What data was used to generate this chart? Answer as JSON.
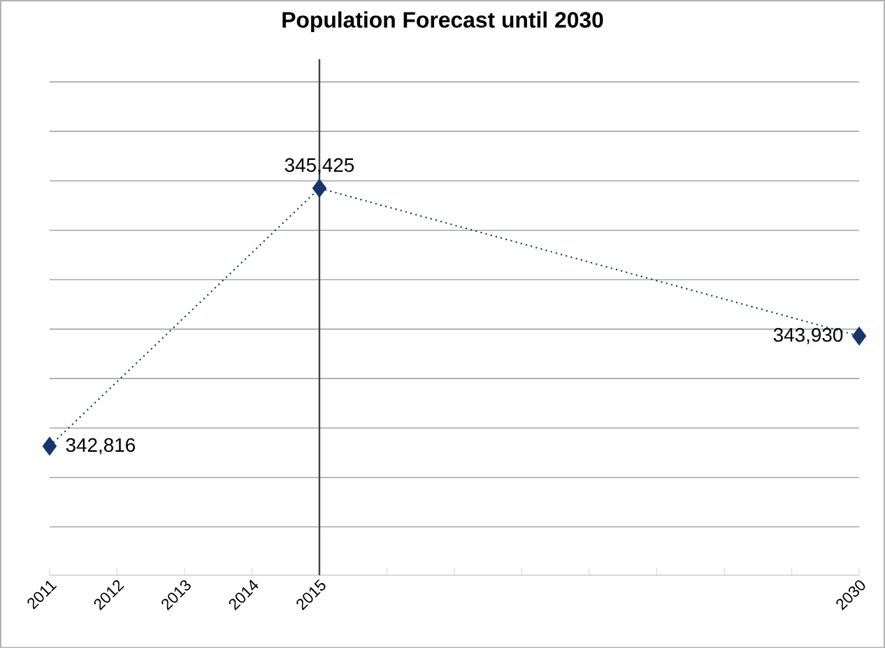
{
  "chart_data": {
    "type": "line",
    "title": "Population Forecast until 2030",
    "categories": [
      "2011",
      "2012",
      "2013",
      "2014",
      "2015",
      null,
      null,
      null,
      null,
      null,
      null,
      null,
      "2030"
    ],
    "series": [
      {
        "color": "#17366b",
        "values": [
          342816,
          null,
          null,
          null,
          345425,
          null,
          null,
          null,
          null,
          null,
          null,
          null,
          343930
        ],
        "value_labels": [
          "342,816",
          null,
          null,
          null,
          "345,425",
          null,
          null,
          null,
          null,
          null,
          null,
          null,
          "343,930"
        ]
      }
    ],
    "grid": "y",
    "marker": "diamond",
    "line_style": "dotted",
    "ref_lines": [
      {
        "axis": "x",
        "value": "2015",
        "color": "#404040"
      }
    ]
  }
}
